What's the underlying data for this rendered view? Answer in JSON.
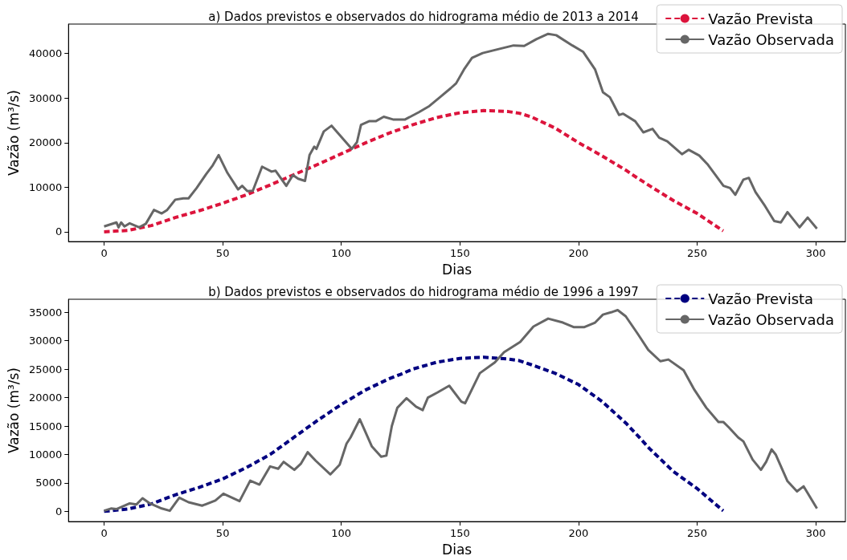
{
  "chart_data": [
    {
      "type": "line",
      "title": "a) Dados previstos e observados do hidrograma médio de 2013 a 2014",
      "xlabel": "Dias",
      "ylabel": "Vazão (m³/s)",
      "xlim": [
        -15,
        312.5
      ],
      "xticks": [
        0,
        50,
        100,
        150,
        200,
        250,
        300
      ],
      "ylim": [
        -2200,
        46600
      ],
      "yticks": [
        0,
        10000,
        20000,
        30000,
        40000
      ],
      "grid": false,
      "legend": "top right",
      "marker": "none",
      "series": [
        {
          "name": "Vazão Prevista",
          "color": "#dc143c",
          "line_style": "dashed",
          "x": [
            0,
            10,
            20,
            25,
            30,
            40,
            50,
            60,
            70,
            80,
            90,
            100,
            110,
            120,
            130,
            140,
            150,
            160,
            170,
            175,
            180,
            190,
            200,
            210,
            220,
            225,
            230,
            240,
            250,
            261
          ],
          "values": [
            0,
            300,
            1400,
            2300,
            3200,
            4700,
            6400,
            8300,
            10500,
            12800,
            15100,
            17500,
            19900,
            22100,
            24000,
            25600,
            26700,
            27200,
            27000,
            26600,
            25800,
            23300,
            20000,
            17000,
            13800,
            12000,
            10300,
            7000,
            4100,
            200
          ]
        },
        {
          "name": "Vazão Observada",
          "color": "#666666",
          "line_style": "solid",
          "x": [
            0,
            5.2,
            6.1,
            7.2,
            8.6,
            10.8,
            14.8,
            17.6,
            21,
            24.3,
            26.6,
            30,
            33.4,
            35.6,
            39,
            43,
            45.8,
            48.3,
            52,
            56.5,
            58.2,
            60.4,
            62.7,
            66.6,
            70.6,
            72.3,
            76.8,
            79.6,
            81.8,
            84.7,
            86.6,
            88.6,
            89.5,
            92.6,
            95.9,
            99.3,
            104.4,
            106.6,
            108.3,
            111.7,
            114.5,
            117.9,
            121.8,
            126.9,
            132.6,
            137.1,
            141.6,
            146.1,
            148.4,
            151.7,
            155.1,
            159.6,
            166.4,
            172.6,
            177.1,
            182.2,
            187.2,
            190.6,
            197.4,
            201.9,
            207,
            210.3,
            213.2,
            217.1,
            218.8,
            223.9,
            227.3,
            231.2,
            234,
            237.4,
            243.6,
            246.4,
            250.9,
            254.3,
            261.1,
            263.9,
            266.1,
            269.5,
            271.8,
            274.6,
            278.6,
            282.5,
            285.3,
            288.1,
            293.2,
            296.6,
            300.5
          ],
          "values": [
            1200,
            2100,
            1000,
            2100,
            1200,
            1900,
            1000,
            1800,
            4900,
            4100,
            4900,
            7200,
            7500,
            7500,
            9800,
            12900,
            14900,
            17200,
            13200,
            9500,
            10300,
            9100,
            9200,
            14600,
            13500,
            13700,
            10300,
            12700,
            11900,
            11400,
            17200,
            19100,
            18600,
            22500,
            23800,
            21700,
            18600,
            20100,
            24000,
            24800,
            24800,
            25800,
            25200,
            25200,
            26800,
            28200,
            30200,
            32200,
            33300,
            36400,
            39000,
            40100,
            41000,
            41800,
            41700,
            43200,
            44400,
            44100,
            41800,
            40400,
            36400,
            31300,
            30200,
            26200,
            26500,
            24800,
            22300,
            23100,
            21100,
            20300,
            17400,
            18400,
            17100,
            15200,
            10300,
            9800,
            8300,
            11700,
            12100,
            8900,
            5800,
            2400,
            2100,
            4400,
            1000,
            3200,
            700
          ]
        }
      ]
    },
    {
      "type": "line",
      "title": "b) Dados previstos e observados do hidrograma médio de 1996 a 1997",
      "xlabel": "Dias",
      "ylabel": "Vazão (m³/s)",
      "xlim": [
        -15,
        312.5
      ],
      "xticks": [
        0,
        50,
        100,
        150,
        200,
        250,
        300
      ],
      "ylim": [
        -1800,
        37300
      ],
      "yticks": [
        0,
        5000,
        10000,
        15000,
        20000,
        25000,
        30000,
        35000
      ],
      "grid": false,
      "legend": "top right",
      "marker": "none",
      "series": [
        {
          "name": "Vazão Prevista",
          "color": "#000080",
          "line_style": "dashed",
          "x": [
            0,
            10,
            20,
            25,
            30,
            40,
            50,
            60,
            70,
            75,
            80,
            90,
            100,
            110,
            120,
            125,
            130,
            140,
            150,
            160,
            170,
            175,
            180,
            190,
            200,
            210,
            220,
            225,
            230,
            240,
            250,
            261
          ],
          "values": [
            0,
            400,
            1300,
            2100,
            2900,
            4200,
            5700,
            7700,
            10000,
            11500,
            13000,
            16000,
            18800,
            21300,
            23300,
            24100,
            25000,
            26200,
            26900,
            27100,
            26800,
            26500,
            25800,
            24300,
            22300,
            19300,
            15500,
            13300,
            11000,
            7000,
            4000,
            100
          ]
        },
        {
          "name": "Vazão Observada",
          "color": "#666666",
          "line_style": "solid",
          "x": [
            0,
            2.9,
            5.2,
            10.8,
            13.6,
            16.2,
            19.3,
            24.3,
            27.7,
            31.7,
            35.6,
            41.3,
            46.9,
            50.3,
            57.1,
            61.6,
            65.5,
            70,
            73.4,
            75.7,
            80.2,
            83,
            85.8,
            89.2,
            95.4,
            99.3,
            102.2,
            103.9,
            107.8,
            112.9,
            116.8,
            119,
            121.3,
            123.6,
            127.5,
            131.5,
            134.3,
            136.5,
            140.5,
            145.5,
            150.6,
            152.2,
            158.4,
            164.7,
            168.6,
            175.4,
            181,
            187.2,
            193.4,
            197.9,
            202.5,
            207,
            210.3,
            213.7,
            216.5,
            219.9,
            225,
            229.4,
            234.5,
            237.9,
            244.3,
            248.8,
            253.9,
            259,
            261.1,
            263.3,
            267.3,
            269.5,
            273.4,
            276.9,
            279.1,
            281.4,
            283.1,
            288.1,
            292.1,
            294.9,
            300.5
          ],
          "values": [
            100,
            500,
            400,
            1400,
            1200,
            2300,
            1400,
            500,
            100,
            2400,
            1600,
            1000,
            1900,
            3100,
            1800,
            5400,
            4700,
            7900,
            7500,
            8700,
            7300,
            8400,
            10400,
            8900,
            6500,
            8200,
            11900,
            13000,
            16200,
            11400,
            9600,
            9800,
            15000,
            18200,
            19900,
            18400,
            17800,
            20000,
            20900,
            22100,
            19300,
            19000,
            24300,
            26200,
            28000,
            29800,
            32500,
            33900,
            33200,
            32400,
            32400,
            33200,
            34600,
            35000,
            35400,
            34300,
            31200,
            28400,
            26400,
            26700,
            24800,
            21400,
            18200,
            15700,
            15700,
            14800,
            13000,
            12300,
            9100,
            7300,
            8700,
            10900,
            10000,
            5300,
            3500,
            4400,
            500
          ]
        }
      ]
    }
  ]
}
